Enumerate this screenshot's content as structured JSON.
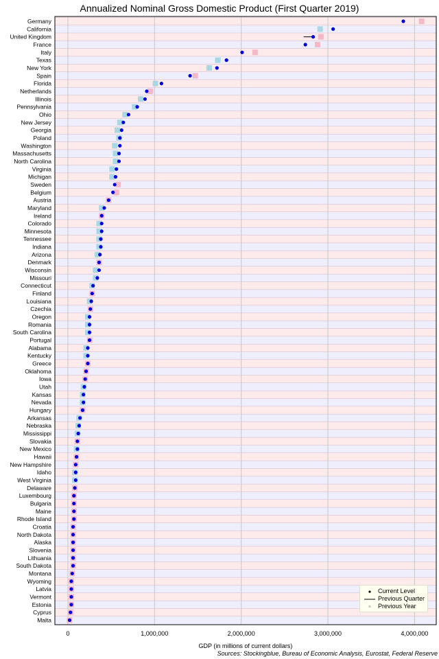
{
  "chart_data": {
    "type": "scatter",
    "orientation": "horizontal",
    "title": "Annualized Nominal Gross Domestic Product (First Quarter 2019)",
    "xlabel": "GDP (in millions of current dollars)",
    "ylabel": "",
    "source": "Sources: Stockingblue, Bureau of Economic Analysis, Eurostat, Federal Reserve",
    "xlim": [
      -150000,
      4250000
    ],
    "xticks": [
      0,
      1000000,
      2000000,
      3000000,
      4000000
    ],
    "xtick_labels": [
      "0",
      "1,000,000",
      "2,000,000",
      "3,000,000",
      "4,000,000"
    ],
    "grid": true,
    "legend_position": "bottom-right",
    "legend": [
      "Current Level",
      "Previous Quarter",
      "Previous Year"
    ],
    "colors": {
      "current": "#0000dd",
      "current_lower": "#dd0000",
      "quarter_line": "#000000",
      "year_higher": "#f5b8c8",
      "year_lower": "#a8d8e4",
      "band_odd": "#eeeefc",
      "band_even": "#fdeaea",
      "band_line": "#d0b8c8"
    },
    "categories": [
      "Germany",
      "California",
      "United Kingdom",
      "France",
      "Italy",
      "Texas",
      "New York",
      "Spain",
      "Florida",
      "Netherlands",
      "Illinois",
      "Pennsylvania",
      "Ohio",
      "New Jersey",
      "Georgia",
      "Poland",
      "Washington",
      "Massachusetts",
      "North Carolina",
      "Virginia",
      "Michigan",
      "Sweden",
      "Belgium",
      "Austria",
      "Maryland",
      "Ireland",
      "Colorado",
      "Minnesota",
      "Tennessee",
      "Indiana",
      "Arizona",
      "Denmark",
      "Wisconsin",
      "Missouri",
      "Connecticut",
      "Finland",
      "Louisiana",
      "Czechia",
      "Oregon",
      "Romania",
      "South Carolina",
      "Portugal",
      "Alabama",
      "Kentucky",
      "Greece",
      "Oklahoma",
      "Iowa",
      "Utah",
      "Kansas",
      "Nevada",
      "Hungary",
      "Arkansas",
      "Nebraska",
      "Mississippi",
      "Slovakia",
      "New Mexico",
      "Hawaii",
      "New Hampshire",
      "Idaho",
      "West Virginia",
      "Delaware",
      "Luxembourg",
      "Bulgaria",
      "Maine",
      "Rhode Island",
      "Croatia",
      "North Dakota",
      "Alaska",
      "Slovenia",
      "Lithuania",
      "South Dakota",
      "Montana",
      "Wyoming",
      "Latvia",
      "Vermont",
      "Estonia",
      "Cyprus",
      "Malta"
    ],
    "series": [
      {
        "name": "Current Level",
        "values": [
          3870000,
          3060000,
          2830000,
          2740000,
          2010000,
          1830000,
          1720000,
          1410000,
          1080000,
          910000,
          890000,
          800000,
          700000,
          640000,
          620000,
          600000,
          600000,
          590000,
          590000,
          560000,
          550000,
          540000,
          520000,
          470000,
          420000,
          390000,
          390000,
          390000,
          380000,
          380000,
          370000,
          360000,
          360000,
          340000,
          290000,
          280000,
          270000,
          260000,
          250000,
          250000,
          250000,
          250000,
          230000,
          230000,
          230000,
          210000,
          200000,
          190000,
          180000,
          180000,
          170000,
          140000,
          130000,
          120000,
          110000,
          110000,
          100000,
          90000,
          90000,
          90000,
          80000,
          70000,
          70000,
          70000,
          70000,
          60000,
          60000,
          60000,
          60000,
          60000,
          60000,
          50000,
          40000,
          40000,
          40000,
          40000,
          30000,
          20000
        ]
      },
      {
        "name": "Previous Quarter",
        "values": [
          3870000,
          3040000,
          2720000,
          2740000,
          2010000,
          1810000,
          1700000,
          1410000,
          1060000,
          900000,
          880000,
          790000,
          690000,
          630000,
          610000,
          600000,
          590000,
          580000,
          580000,
          550000,
          540000,
          540000,
          520000,
          470000,
          410000,
          390000,
          380000,
          380000,
          370000,
          370000,
          360000,
          360000,
          350000,
          340000,
          290000,
          280000,
          270000,
          260000,
          250000,
          250000,
          250000,
          250000,
          230000,
          230000,
          230000,
          210000,
          200000,
          190000,
          180000,
          180000,
          170000,
          140000,
          130000,
          120000,
          110000,
          110000,
          100000,
          90000,
          90000,
          90000,
          80000,
          70000,
          70000,
          70000,
          70000,
          60000,
          60000,
          60000,
          60000,
          60000,
          60000,
          50000,
          40000,
          40000,
          40000,
          40000,
          30000,
          20000
        ]
      },
      {
        "name": "Previous Year",
        "values": [
          4080000,
          2910000,
          2920000,
          2880000,
          2160000,
          1730000,
          1630000,
          1470000,
          1010000,
          950000,
          840000,
          770000,
          660000,
          600000,
          570000,
          590000,
          540000,
          550000,
          550000,
          510000,
          510000,
          580000,
          560000,
          470000,
          390000,
          390000,
          360000,
          360000,
          360000,
          360000,
          340000,
          360000,
          320000,
          320000,
          280000,
          280000,
          250000,
          260000,
          230000,
          230000,
          230000,
          250000,
          210000,
          210000,
          230000,
          210000,
          200000,
          180000,
          170000,
          170000,
          170000,
          130000,
          120000,
          110000,
          110000,
          100000,
          100000,
          90000,
          80000,
          80000,
          80000,
          70000,
          70000,
          70000,
          70000,
          60000,
          60000,
          60000,
          60000,
          60000,
          60000,
          50000,
          40000,
          40000,
          40000,
          40000,
          30000,
          20000
        ]
      }
    ]
  }
}
